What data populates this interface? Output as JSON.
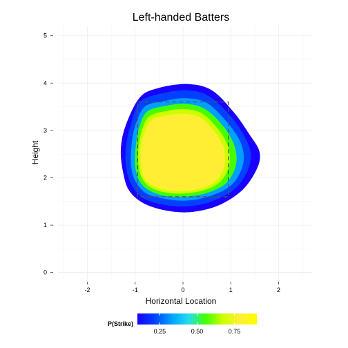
{
  "chart_data": {
    "type": "heatmap",
    "title": "Left-handed Batters",
    "xlabel": "Horizontal Location",
    "ylabel": "Height",
    "xlim": [
      -2.6,
      2.7
    ],
    "ylim": [
      -0.15,
      5.2
    ],
    "x_ticks": [
      -2,
      -1,
      0,
      1,
      2
    ],
    "y_ticks": [
      0,
      1,
      2,
      3,
      4,
      5
    ],
    "grid": true,
    "strike_zone": {
      "x": [
        -0.95,
        0.95
      ],
      "y": [
        1.6,
        3.6
      ]
    },
    "legend": {
      "title": "P(Strike)",
      "position": "bottom",
      "range": [
        0.1,
        0.9
      ],
      "breaks": [
        0.25,
        0.5,
        0.75
      ],
      "colors": [
        "#1a00ff",
        "#0040ff",
        "#00a0ff",
        "#22ddee",
        "#44ff00",
        "#ccff00",
        "#ffee33",
        "#ffff00"
      ]
    },
    "contours": [
      {
        "level": 0.1,
        "color": "#1a00ff",
        "points": [
          [
            -0.9,
            3.7
          ],
          [
            -0.5,
            3.9
          ],
          [
            0.1,
            3.98
          ],
          [
            0.6,
            3.85
          ],
          [
            1.05,
            3.4
          ],
          [
            1.4,
            2.9
          ],
          [
            1.6,
            2.55
          ],
          [
            1.55,
            2.2
          ],
          [
            1.25,
            1.75
          ],
          [
            0.75,
            1.42
          ],
          [
            0.2,
            1.28
          ],
          [
            -0.3,
            1.3
          ],
          [
            -0.8,
            1.45
          ],
          [
            -1.12,
            1.72
          ],
          [
            -1.25,
            2.1
          ],
          [
            -1.3,
            2.6
          ],
          [
            -1.2,
            3.1
          ]
        ]
      },
      {
        "level": 0.2,
        "color": "#0040ff",
        "points": [
          [
            -0.9,
            3.6
          ],
          [
            -0.45,
            3.78
          ],
          [
            0.1,
            3.85
          ],
          [
            0.55,
            3.72
          ],
          [
            1.0,
            3.3
          ],
          [
            1.3,
            2.85
          ],
          [
            1.42,
            2.5
          ],
          [
            1.35,
            2.15
          ],
          [
            1.1,
            1.78
          ],
          [
            0.65,
            1.52
          ],
          [
            0.15,
            1.4
          ],
          [
            -0.35,
            1.42
          ],
          [
            -0.8,
            1.55
          ],
          [
            -1.05,
            1.8
          ],
          [
            -1.18,
            2.15
          ],
          [
            -1.2,
            2.6
          ],
          [
            -1.1,
            3.1
          ]
        ]
      },
      {
        "level": 0.4,
        "color": "#00a0ff",
        "points": [
          [
            -0.8,
            3.5
          ],
          [
            -0.4,
            3.62
          ],
          [
            0.05,
            3.68
          ],
          [
            0.5,
            3.58
          ],
          [
            0.9,
            3.2
          ],
          [
            1.18,
            2.8
          ],
          [
            1.27,
            2.45
          ],
          [
            1.2,
            2.12
          ],
          [
            0.98,
            1.82
          ],
          [
            0.58,
            1.62
          ],
          [
            0.1,
            1.52
          ],
          [
            -0.35,
            1.55
          ],
          [
            -0.75,
            1.66
          ],
          [
            -0.98,
            1.9
          ],
          [
            -1.08,
            2.2
          ],
          [
            -1.08,
            2.65
          ],
          [
            -1.0,
            3.1
          ]
        ]
      },
      {
        "level": 0.6,
        "color": "#44ff00",
        "points": [
          [
            -0.75,
            3.4
          ],
          [
            -0.35,
            3.52
          ],
          [
            0.05,
            3.56
          ],
          [
            0.45,
            3.46
          ],
          [
            0.82,
            3.12
          ],
          [
            1.05,
            2.75
          ],
          [
            1.12,
            2.42
          ],
          [
            1.06,
            2.12
          ],
          [
            0.86,
            1.85
          ],
          [
            0.5,
            1.68
          ],
          [
            0.05,
            1.6
          ],
          [
            -0.38,
            1.62
          ],
          [
            -0.72,
            1.74
          ],
          [
            -0.92,
            1.95
          ],
          [
            -1.0,
            2.25
          ],
          [
            -0.99,
            2.65
          ],
          [
            -0.92,
            3.05
          ]
        ]
      },
      {
        "level": 0.75,
        "color": "#ccff00",
        "points": [
          [
            -0.7,
            3.3
          ],
          [
            -0.3,
            3.42
          ],
          [
            0.05,
            3.45
          ],
          [
            0.4,
            3.36
          ],
          [
            0.72,
            3.05
          ],
          [
            0.92,
            2.72
          ],
          [
            0.98,
            2.42
          ],
          [
            0.93,
            2.15
          ],
          [
            0.76,
            1.9
          ],
          [
            0.45,
            1.74
          ],
          [
            0.02,
            1.67
          ],
          [
            -0.36,
            1.69
          ],
          [
            -0.68,
            1.8
          ],
          [
            -0.86,
            2.0
          ],
          [
            -0.93,
            2.28
          ],
          [
            -0.93,
            2.65
          ],
          [
            -0.86,
            3.0
          ]
        ]
      },
      {
        "level": 0.85,
        "color": "#ffee33",
        "points": [
          [
            -0.65,
            3.22
          ],
          [
            -0.28,
            3.33
          ],
          [
            0.05,
            3.35
          ],
          [
            0.36,
            3.27
          ],
          [
            0.64,
            3.0
          ],
          [
            0.83,
            2.7
          ],
          [
            0.88,
            2.42
          ],
          [
            0.84,
            2.16
          ],
          [
            0.68,
            1.93
          ],
          [
            0.4,
            1.78
          ],
          [
            0.0,
            1.72
          ],
          [
            -0.35,
            1.74
          ],
          [
            -0.64,
            1.84
          ],
          [
            -0.82,
            2.02
          ],
          [
            -0.88,
            2.3
          ],
          [
            -0.88,
            2.65
          ],
          [
            -0.8,
            2.97
          ]
        ]
      }
    ]
  }
}
